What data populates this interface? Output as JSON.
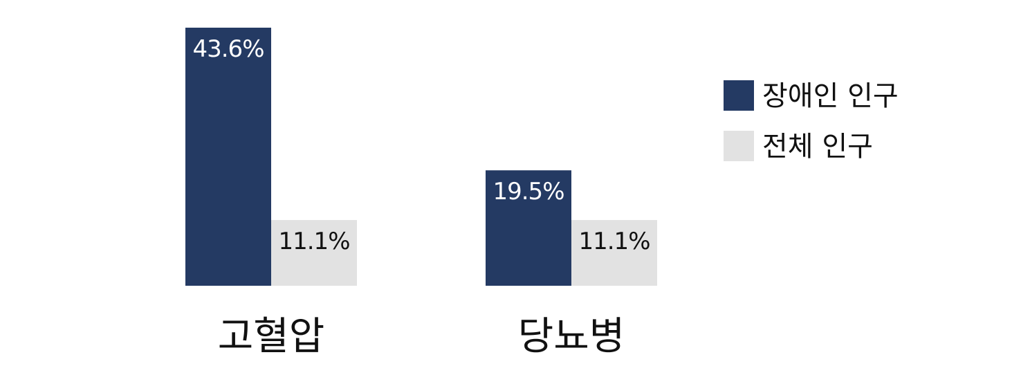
{
  "chart_data": {
    "type": "bar",
    "title": "",
    "xlabel": "",
    "ylabel": "",
    "categories": [
      "고혈압",
      "당뇨병"
    ],
    "ylim": [
      0,
      43.6
    ],
    "grid": false,
    "legend_position": "right",
    "series": [
      {
        "name": "장애인 인구",
        "values": [
          43.6,
          19.5
        ],
        "labels": [
          "43.6%",
          "19.5%"
        ],
        "color": "#243a63",
        "label_color": "#ffffff"
      },
      {
        "name": "전체 인구",
        "values": [
          11.1,
          11.1
        ],
        "labels": [
          "11.1%",
          "11.1%"
        ],
        "color": "#e2e2e2",
        "label_color": "#111111"
      }
    ]
  }
}
